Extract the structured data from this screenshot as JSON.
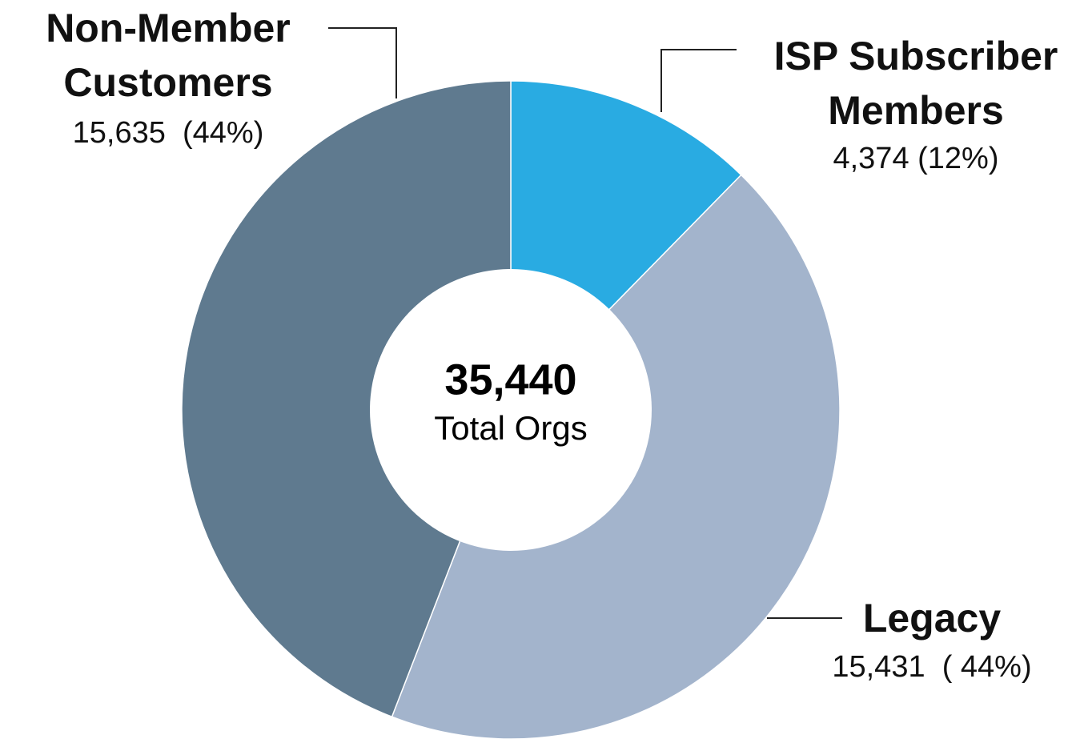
{
  "chart_data": {
    "type": "donut",
    "categories": [
      "ISP Subscriber Members",
      "Legacy",
      "Non-Member Customers"
    ],
    "values": [
      4374,
      15431,
      15635
    ],
    "value_labels": [
      "4,374 (12%)",
      "15,431  ( 44%)",
      "15,635  (44%)"
    ],
    "colors": [
      "#29abe2",
      "#a3b4cc",
      "#5f7a8f"
    ],
    "center_text": [
      "35,440",
      "Total Orgs"
    ]
  }
}
